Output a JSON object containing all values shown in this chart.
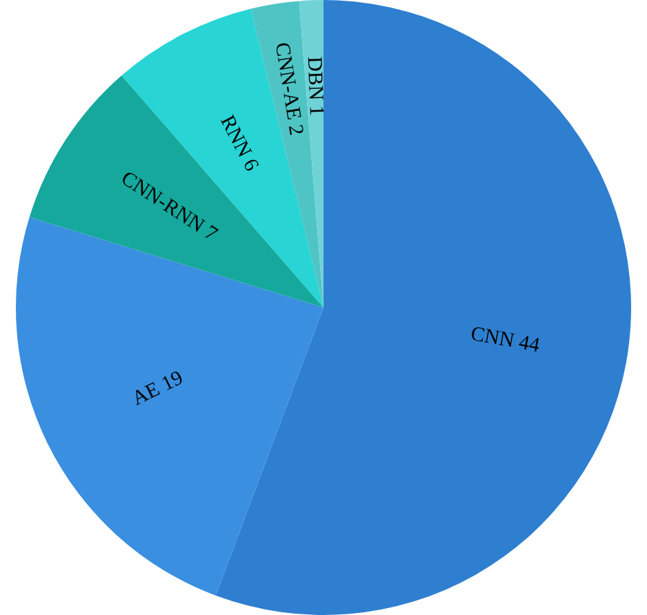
{
  "chart_data": {
    "type": "pie",
    "categories": [
      "CNN",
      "AE",
      "CNN-RNN",
      "RNN",
      "CNN-AE",
      "DBN"
    ],
    "values": [
      44,
      19,
      7,
      6,
      2,
      1
    ],
    "colors": [
      "#2f7fd0",
      "#3a8fe0",
      "#16a89c",
      "#28d4d4",
      "#4fc4c4",
      "#6fd3d6"
    ],
    "data_labels": true,
    "legend": false
  }
}
